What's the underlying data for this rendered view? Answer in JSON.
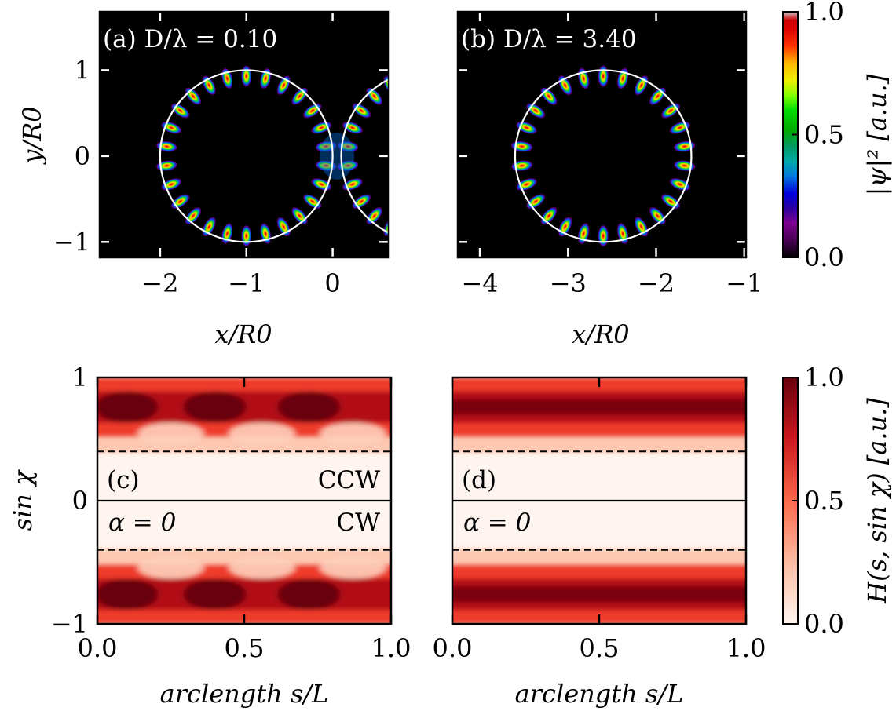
{
  "chart_data": [
    {
      "type": "heatmap",
      "panel": "a",
      "annotation": "(a) D/λ = 0.10",
      "D_over_lambda": 0.1,
      "xlabel": "x/R0",
      "ylabel": "y/R0",
      "xlim": [
        -2.7,
        0.65
      ],
      "ylim": [
        -1.18,
        1.68
      ],
      "xticks": [
        -2,
        -1,
        0
      ],
      "xtick_labels": [
        "−2",
        "−1",
        "0"
      ],
      "yticks": [
        -1,
        0,
        1
      ],
      "ytick_labels": [
        "−1",
        "0",
        "1"
      ],
      "disks": [
        {
          "center": [
            -1.0,
            0.0
          ],
          "radius": 1.0
        },
        {
          "center": [
            1.1,
            0.0
          ],
          "radius": 1.0
        }
      ],
      "lobes_per_ring": 26,
      "description": "whispering-gallery mode intensity |ψ|² on two coupled disks"
    },
    {
      "type": "heatmap",
      "panel": "b",
      "annotation": "(b) D/λ = 3.40",
      "D_over_lambda": 3.4,
      "xlabel": "x/R0",
      "xlim": [
        -4.25,
        -0.98
      ],
      "ylim": [
        -1.18,
        1.68
      ],
      "xticks": [
        -4,
        -3,
        -2,
        -1
      ],
      "xtick_labels": [
        "−4",
        "−3",
        "−2",
        "−1"
      ],
      "yticks": [
        -1,
        0,
        1
      ],
      "disks": [
        {
          "center": [
            -2.6,
            0.0
          ],
          "radius": 1.0
        }
      ],
      "lobes_per_ring": 26
    },
    {
      "type": "heatmap",
      "panel": "c",
      "label": "(c)",
      "alpha_label": "α = 0",
      "ccw_label": "CCW",
      "cw_label": "CW",
      "xlabel": "arclength s/L",
      "ylabel": "sin χ",
      "xlim": [
        0,
        1
      ],
      "ylim": [
        -1,
        1
      ],
      "xticks": [
        0,
        0.5,
        1
      ],
      "xtick_labels": [
        "0.0",
        "0.5",
        "1.0"
      ],
      "yticks": [
        -1,
        0,
        1
      ],
      "ytick_labels": [
        "−1",
        "0",
        "1"
      ],
      "critical_line": 0.4,
      "band_center": 0.76,
      "hot_spots_s": [
        0.1,
        0.4,
        0.72
      ],
      "description": "Husimi function H(s, sin χ), modulated bands"
    },
    {
      "type": "heatmap",
      "panel": "d",
      "label": "(d)",
      "alpha_label": "α = 0",
      "xlabel": "arclength s/L",
      "xlim": [
        0,
        1
      ],
      "ylim": [
        -1,
        1
      ],
      "xticks": [
        0,
        0.5,
        1
      ],
      "xtick_labels": [
        "0.0",
        "0.5",
        "1.0"
      ],
      "yticks": [
        -1,
        0,
        1
      ],
      "critical_line": 0.4,
      "band_center": 0.76,
      "description": "Husimi function H(s, sin χ), uniform bands"
    }
  ],
  "colorbars": [
    {
      "label": "|ψ|² [a.u.]",
      "ticks": [
        "0.0",
        "0.5",
        "1.0"
      ],
      "colormap": "nipy_spectral"
    },
    {
      "label": "H(s, sin χ) [a.u.]",
      "ticks": [
        "0.0",
        "0.5",
        "1.0"
      ],
      "colormap": "Reds"
    }
  ]
}
